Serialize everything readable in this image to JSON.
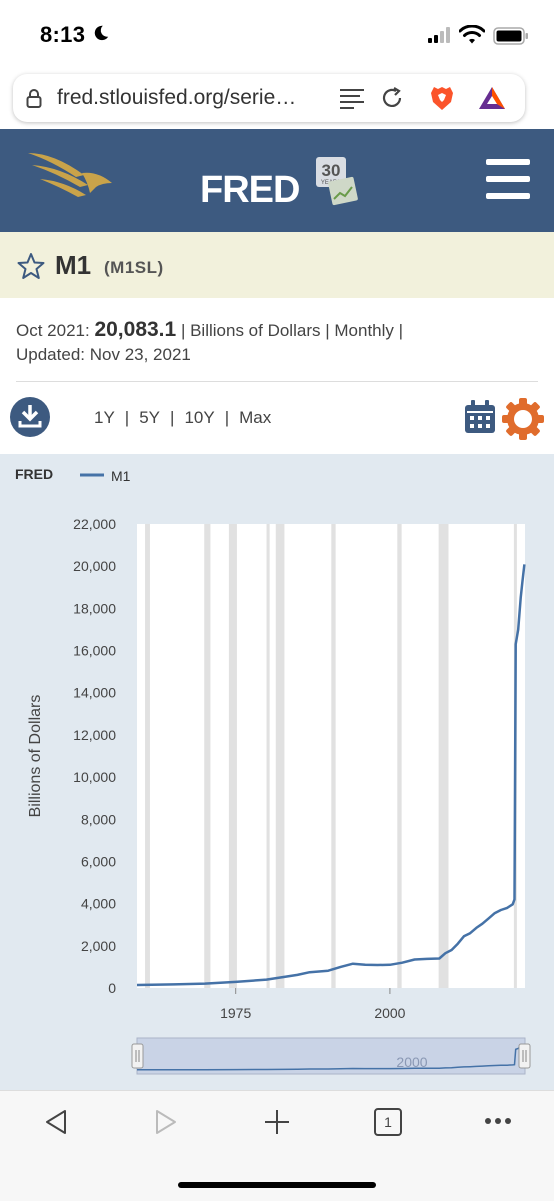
{
  "status_bar": {
    "time": "8:13"
  },
  "browser": {
    "url": "fred.stlouisfed.org/serie…"
  },
  "header": {
    "wordmark": "FRED",
    "badge_number": "30",
    "badge_word": "YEARS"
  },
  "series": {
    "name": "M1",
    "code": "(M1SL)",
    "date": "Oct 2021:",
    "value": "20,083.1",
    "units": "Billions of Dollars",
    "frequency": "Monthly",
    "updated_label": "Updated:",
    "updated_date": "Nov 23, 2021"
  },
  "ranges": [
    "1Y",
    "5Y",
    "10Y",
    "Max"
  ],
  "bottom_nav": {
    "tab_count": "1"
  },
  "colors": {
    "header": "#3d5a80",
    "accent_gold": "#c9a34a",
    "line": "#4572a7",
    "settings": "#e06c2c",
    "recession": "#e1e1e1",
    "chart_bg": "#e1e9f0"
  },
  "chart_data": {
    "type": "line",
    "logo": "FRED",
    "legend": "M1",
    "ylabel": "Billions of Dollars",
    "xlabel": "",
    "ylim": [
      0,
      22000
    ],
    "xlim": [
      1959.0,
      2021.9
    ],
    "y_ticks": [
      "0",
      "2,000",
      "4,000",
      "6,000",
      "8,000",
      "10,000",
      "12,000",
      "14,000",
      "16,000",
      "18,000",
      "20,000",
      "22,000"
    ],
    "x_ticks": [
      "1975",
      "2000"
    ],
    "recessions": [
      [
        1960.3,
        1961.1
      ],
      [
        1969.9,
        1970.9
      ],
      [
        1973.9,
        1975.2
      ],
      [
        1980.0,
        1980.5
      ],
      [
        1981.5,
        1982.9
      ],
      [
        1990.5,
        1991.2
      ],
      [
        2001.2,
        2001.9
      ],
      [
        2007.9,
        2009.5
      ],
      [
        2020.1,
        2020.3
      ]
    ],
    "series": [
      {
        "name": "M1",
        "x": [
          1959.0,
          1965.0,
          1970.0,
          1975.0,
          1980.0,
          1985.0,
          1987.0,
          1990.0,
          1992.0,
          1994.0,
          1996.0,
          1998.0,
          2000.0,
          2002.0,
          2004.0,
          2006.0,
          2008.0,
          2009.0,
          2010.0,
          2011.0,
          2012.0,
          2013.0,
          2014.0,
          2015.0,
          2016.0,
          2017.0,
          2018.0,
          2019.0,
          2019.9,
          2020.2,
          2020.4,
          2020.8,
          2021.2,
          2021.5,
          2021.8
        ],
        "y": [
          140,
          170,
          210,
          290,
          400,
          620,
          750,
          820,
          1000,
          1150,
          1100,
          1090,
          1100,
          1200,
          1350,
          1380,
          1400,
          1650,
          1800,
          2100,
          2450,
          2600,
          2850,
          3050,
          3300,
          3550,
          3700,
          3800,
          3970,
          4200,
          16300,
          17000,
          18500,
          19300,
          20083
        ]
      }
    ],
    "navigator_label": "2000"
  }
}
